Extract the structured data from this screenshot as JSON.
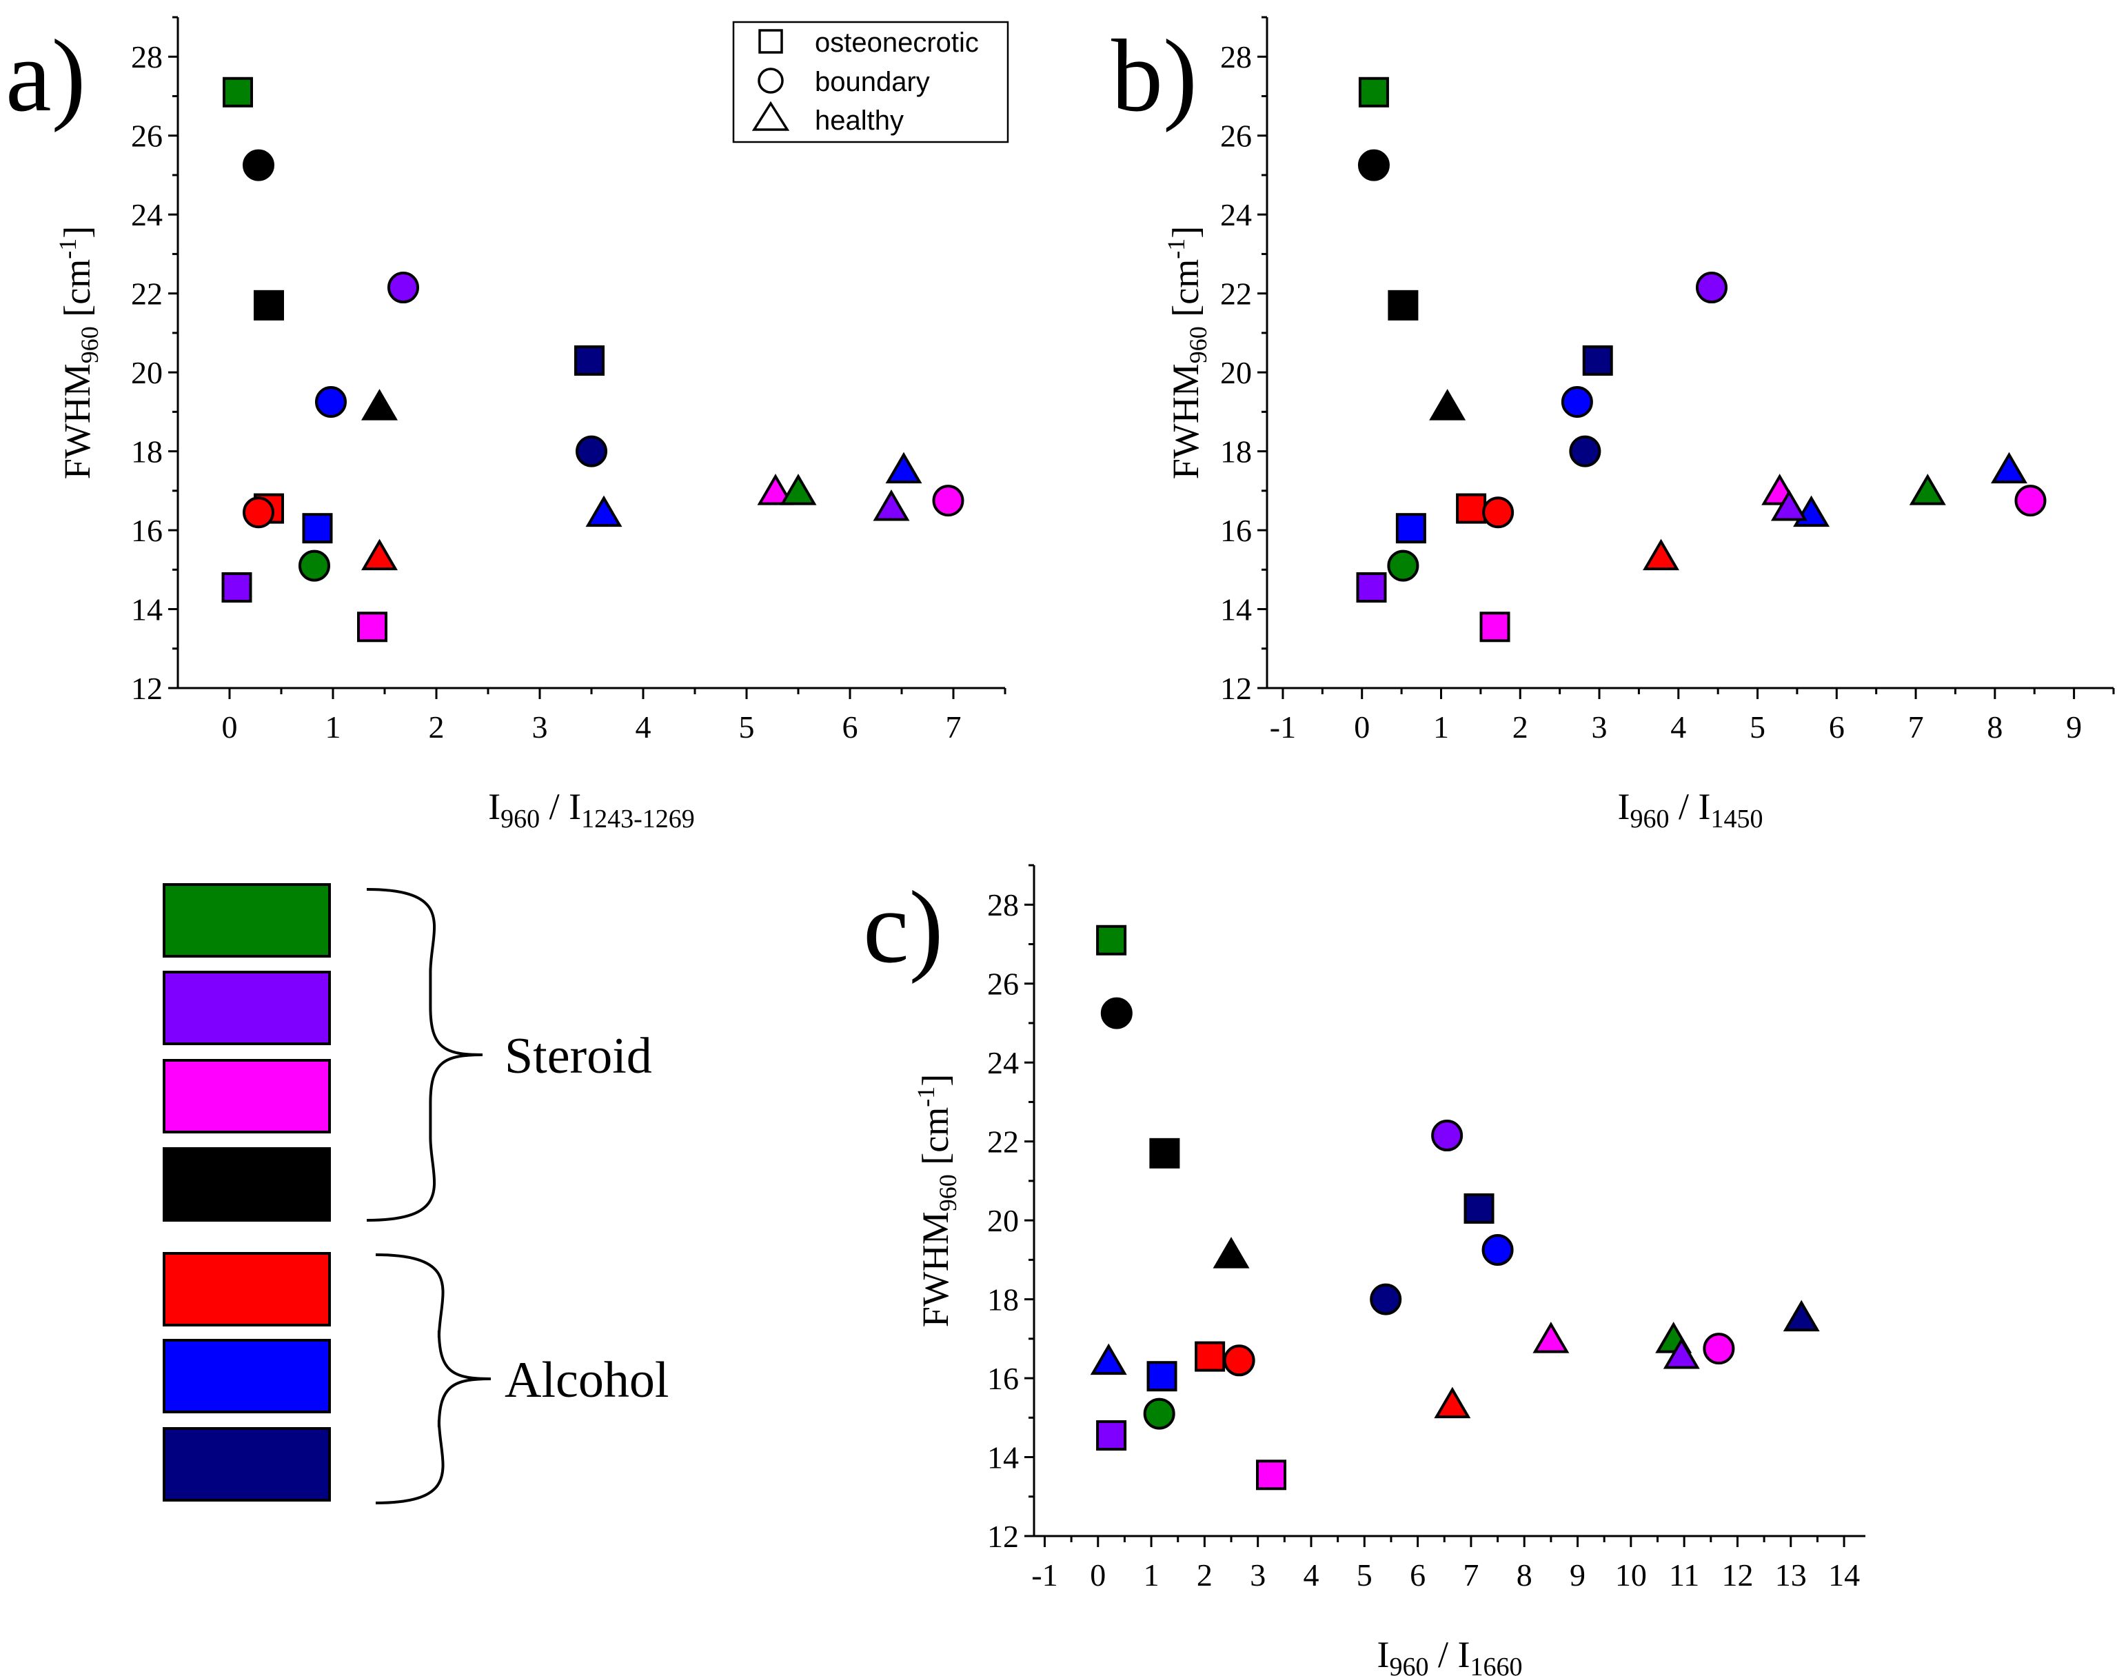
{
  "colors": {
    "green": "#008000",
    "violet": "#8000FF",
    "magenta": "#FF00FF",
    "black": "#000000",
    "red": "#FF0000",
    "blue": "#0000FF",
    "navy": "#000080"
  },
  "legend": {
    "shapes": [
      {
        "shape": "square",
        "label": "osteonecrotic"
      },
      {
        "shape": "circle",
        "label": "boundary"
      },
      {
        "shape": "triangle",
        "label": "healthy"
      }
    ]
  },
  "color_key": {
    "swatches": [
      "green",
      "violet",
      "magenta",
      "black",
      "red",
      "blue",
      "navy"
    ],
    "groups": [
      {
        "label": "Steroid",
        "colors": [
          "green",
          "violet",
          "magenta",
          "black"
        ]
      },
      {
        "label": "Alcohol",
        "colors": [
          "red",
          "blue",
          "navy"
        ]
      }
    ]
  },
  "chart_data": [
    {
      "type": "scatter",
      "panel": "a)",
      "ylabel": {
        "main": "FWHM",
        "sub": "960",
        "unit_open": " [cm",
        "sup": "-1",
        "unit_close": "]"
      },
      "xlabel": {
        "main": "I",
        "sub1": "960",
        "sep": " / I",
        "sub2": "1243-1269"
      },
      "xlim": [
        -0.5,
        7.5
      ],
      "ylim": [
        12,
        29
      ],
      "xticks": [
        "0",
        "1",
        "2",
        "3",
        "4",
        "5",
        "6",
        "7"
      ],
      "yticks": [
        "12",
        "14",
        "16",
        "18",
        "20",
        "22",
        "24",
        "26",
        "28"
      ],
      "points": [
        {
          "x": 0.08,
          "y": 27.1,
          "shape": "square",
          "color": "green"
        },
        {
          "x": 0.28,
          "y": 25.25,
          "shape": "circle",
          "color": "black"
        },
        {
          "x": 0.38,
          "y": 21.7,
          "shape": "square",
          "color": "black"
        },
        {
          "x": 1.68,
          "y": 22.15,
          "shape": "circle",
          "color": "violet"
        },
        {
          "x": 0.98,
          "y": 19.25,
          "shape": "circle",
          "color": "blue"
        },
        {
          "x": 1.45,
          "y": 19.1,
          "shape": "triangle",
          "color": "black"
        },
        {
          "x": 3.48,
          "y": 20.3,
          "shape": "square",
          "color": "navy"
        },
        {
          "x": 3.5,
          "y": 18.0,
          "shape": "circle",
          "color": "navy"
        },
        {
          "x": 0.38,
          "y": 16.55,
          "shape": "square",
          "color": "red"
        },
        {
          "x": 0.28,
          "y": 16.45,
          "shape": "circle",
          "color": "red"
        },
        {
          "x": 0.85,
          "y": 16.05,
          "shape": "square",
          "color": "blue"
        },
        {
          "x": 3.62,
          "y": 16.4,
          "shape": "triangle",
          "color": "blue"
        },
        {
          "x": 0.07,
          "y": 14.55,
          "shape": "square",
          "color": "violet"
        },
        {
          "x": 0.82,
          "y": 15.1,
          "shape": "circle",
          "color": "green"
        },
        {
          "x": 1.45,
          "y": 15.3,
          "shape": "triangle",
          "color": "red"
        },
        {
          "x": 1.38,
          "y": 13.55,
          "shape": "square",
          "color": "magenta"
        },
        {
          "x": 5.28,
          "y": 16.95,
          "shape": "triangle",
          "color": "magenta"
        },
        {
          "x": 5.5,
          "y": 16.95,
          "shape": "triangle",
          "color": "green"
        },
        {
          "x": 6.4,
          "y": 16.55,
          "shape": "triangle",
          "color": "violet"
        },
        {
          "x": 6.52,
          "y": 17.5,
          "shape": "triangle",
          "color": "blue"
        },
        {
          "x": 6.95,
          "y": 16.75,
          "shape": "circle",
          "color": "magenta"
        }
      ]
    },
    {
      "type": "scatter",
      "panel": "b)",
      "ylabel": {
        "main": "FWHM",
        "sub": "960",
        "unit_open": " [cm",
        "sup": "-1",
        "unit_close": "]"
      },
      "xlabel": {
        "main": "I",
        "sub1": "960",
        "sep": " / I",
        "sub2": "1450"
      },
      "xlim": [
        -1.2,
        9.5
      ],
      "ylim": [
        12,
        29
      ],
      "xticks": [
        "-1",
        "0",
        "1",
        "2",
        "3",
        "4",
        "5",
        "6",
        "7",
        "8",
        "9"
      ],
      "yticks": [
        "12",
        "14",
        "16",
        "18",
        "20",
        "22",
        "24",
        "26",
        "28"
      ],
      "points": [
        {
          "x": 0.15,
          "y": 27.1,
          "shape": "square",
          "color": "green"
        },
        {
          "x": 0.15,
          "y": 25.25,
          "shape": "circle",
          "color": "black"
        },
        {
          "x": 0.52,
          "y": 21.7,
          "shape": "square",
          "color": "black"
        },
        {
          "x": 4.42,
          "y": 22.15,
          "shape": "circle",
          "color": "violet"
        },
        {
          "x": 2.72,
          "y": 19.25,
          "shape": "circle",
          "color": "blue"
        },
        {
          "x": 1.08,
          "y": 19.1,
          "shape": "triangle",
          "color": "black"
        },
        {
          "x": 2.98,
          "y": 20.3,
          "shape": "square",
          "color": "navy"
        },
        {
          "x": 2.82,
          "y": 18.0,
          "shape": "circle",
          "color": "navy"
        },
        {
          "x": 1.38,
          "y": 16.55,
          "shape": "square",
          "color": "red"
        },
        {
          "x": 1.72,
          "y": 16.45,
          "shape": "circle",
          "color": "red"
        },
        {
          "x": 0.62,
          "y": 16.05,
          "shape": "square",
          "color": "blue"
        },
        {
          "x": 5.68,
          "y": 16.4,
          "shape": "triangle",
          "color": "blue"
        },
        {
          "x": 0.12,
          "y": 14.55,
          "shape": "square",
          "color": "violet"
        },
        {
          "x": 0.52,
          "y": 15.1,
          "shape": "circle",
          "color": "green"
        },
        {
          "x": 3.78,
          "y": 15.3,
          "shape": "triangle",
          "color": "red"
        },
        {
          "x": 1.68,
          "y": 13.55,
          "shape": "square",
          "color": "magenta"
        },
        {
          "x": 5.28,
          "y": 16.95,
          "shape": "triangle",
          "color": "magenta"
        },
        {
          "x": 7.15,
          "y": 16.95,
          "shape": "triangle",
          "color": "green"
        },
        {
          "x": 5.4,
          "y": 16.55,
          "shape": "triangle",
          "color": "violet"
        },
        {
          "x": 8.18,
          "y": 17.5,
          "shape": "triangle",
          "color": "blue"
        },
        {
          "x": 8.45,
          "y": 16.75,
          "shape": "circle",
          "color": "magenta"
        }
      ]
    },
    {
      "type": "scatter",
      "panel": "c)",
      "ylabel": {
        "main": "FWHM",
        "sub": "960",
        "unit_open": " [cm",
        "sup": "-1",
        "unit_close": "]"
      },
      "xlabel": {
        "main": "I",
        "sub1": "960",
        "sep": " / I",
        "sub2": "1660"
      },
      "xlim": [
        -1.2,
        14.4
      ],
      "ylim": [
        12,
        29
      ],
      "xticks": [
        "-1",
        "0",
        "1",
        "2",
        "3",
        "4",
        "5",
        "6",
        "7",
        "8",
        "9",
        "10",
        "11",
        "12",
        "13",
        "14"
      ],
      "yticks": [
        "12",
        "14",
        "16",
        "18",
        "20",
        "22",
        "24",
        "26",
        "28"
      ],
      "points": [
        {
          "x": 0.25,
          "y": 27.1,
          "shape": "square",
          "color": "green"
        },
        {
          "x": 0.35,
          "y": 25.25,
          "shape": "circle",
          "color": "black"
        },
        {
          "x": 1.25,
          "y": 21.7,
          "shape": "square",
          "color": "black"
        },
        {
          "x": 6.55,
          "y": 22.15,
          "shape": "circle",
          "color": "violet"
        },
        {
          "x": 7.5,
          "y": 19.25,
          "shape": "circle",
          "color": "blue"
        },
        {
          "x": 2.5,
          "y": 19.1,
          "shape": "triangle",
          "color": "black"
        },
        {
          "x": 7.15,
          "y": 20.3,
          "shape": "square",
          "color": "navy"
        },
        {
          "x": 5.4,
          "y": 18.0,
          "shape": "circle",
          "color": "navy"
        },
        {
          "x": 2.1,
          "y": 16.55,
          "shape": "square",
          "color": "red"
        },
        {
          "x": 2.65,
          "y": 16.45,
          "shape": "circle",
          "color": "red"
        },
        {
          "x": 1.2,
          "y": 16.05,
          "shape": "square",
          "color": "blue"
        },
        {
          "x": 0.2,
          "y": 16.4,
          "shape": "triangle",
          "color": "blue"
        },
        {
          "x": 0.25,
          "y": 14.55,
          "shape": "square",
          "color": "violet"
        },
        {
          "x": 1.15,
          "y": 15.1,
          "shape": "circle",
          "color": "green"
        },
        {
          "x": 6.65,
          "y": 15.3,
          "shape": "triangle",
          "color": "red"
        },
        {
          "x": 3.25,
          "y": 13.55,
          "shape": "square",
          "color": "magenta"
        },
        {
          "x": 8.5,
          "y": 16.95,
          "shape": "triangle",
          "color": "magenta"
        },
        {
          "x": 10.8,
          "y": 16.95,
          "shape": "triangle",
          "color": "green"
        },
        {
          "x": 10.95,
          "y": 16.55,
          "shape": "triangle",
          "color": "violet"
        },
        {
          "x": 13.2,
          "y": 17.5,
          "shape": "triangle",
          "color": "navy"
        },
        {
          "x": 11.65,
          "y": 16.75,
          "shape": "circle",
          "color": "magenta"
        }
      ]
    }
  ]
}
